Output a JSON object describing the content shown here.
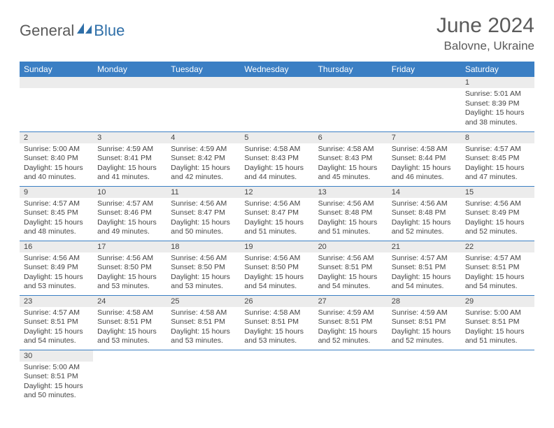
{
  "logo": {
    "general": "General",
    "blue": "Blue"
  },
  "title": "June 2024",
  "location": "Balovne, Ukraine",
  "header_color": "#3b7fc4",
  "daynum_bg": "#ececec",
  "border_color": "#3b7fc4",
  "weekdays": [
    "Sunday",
    "Monday",
    "Tuesday",
    "Wednesday",
    "Thursday",
    "Friday",
    "Saturday"
  ],
  "grid": [
    [
      null,
      null,
      null,
      null,
      null,
      null,
      {
        "n": "1",
        "sr": "Sunrise: 5:01 AM",
        "ss": "Sunset: 8:39 PM",
        "d1": "Daylight: 15 hours",
        "d2": "and 38 minutes."
      }
    ],
    [
      {
        "n": "2",
        "sr": "Sunrise: 5:00 AM",
        "ss": "Sunset: 8:40 PM",
        "d1": "Daylight: 15 hours",
        "d2": "and 40 minutes."
      },
      {
        "n": "3",
        "sr": "Sunrise: 4:59 AM",
        "ss": "Sunset: 8:41 PM",
        "d1": "Daylight: 15 hours",
        "d2": "and 41 minutes."
      },
      {
        "n": "4",
        "sr": "Sunrise: 4:59 AM",
        "ss": "Sunset: 8:42 PM",
        "d1": "Daylight: 15 hours",
        "d2": "and 42 minutes."
      },
      {
        "n": "5",
        "sr": "Sunrise: 4:58 AM",
        "ss": "Sunset: 8:43 PM",
        "d1": "Daylight: 15 hours",
        "d2": "and 44 minutes."
      },
      {
        "n": "6",
        "sr": "Sunrise: 4:58 AM",
        "ss": "Sunset: 8:43 PM",
        "d1": "Daylight: 15 hours",
        "d2": "and 45 minutes."
      },
      {
        "n": "7",
        "sr": "Sunrise: 4:58 AM",
        "ss": "Sunset: 8:44 PM",
        "d1": "Daylight: 15 hours",
        "d2": "and 46 minutes."
      },
      {
        "n": "8",
        "sr": "Sunrise: 4:57 AM",
        "ss": "Sunset: 8:45 PM",
        "d1": "Daylight: 15 hours",
        "d2": "and 47 minutes."
      }
    ],
    [
      {
        "n": "9",
        "sr": "Sunrise: 4:57 AM",
        "ss": "Sunset: 8:45 PM",
        "d1": "Daylight: 15 hours",
        "d2": "and 48 minutes."
      },
      {
        "n": "10",
        "sr": "Sunrise: 4:57 AM",
        "ss": "Sunset: 8:46 PM",
        "d1": "Daylight: 15 hours",
        "d2": "and 49 minutes."
      },
      {
        "n": "11",
        "sr": "Sunrise: 4:56 AM",
        "ss": "Sunset: 8:47 PM",
        "d1": "Daylight: 15 hours",
        "d2": "and 50 minutes."
      },
      {
        "n": "12",
        "sr": "Sunrise: 4:56 AM",
        "ss": "Sunset: 8:47 PM",
        "d1": "Daylight: 15 hours",
        "d2": "and 51 minutes."
      },
      {
        "n": "13",
        "sr": "Sunrise: 4:56 AM",
        "ss": "Sunset: 8:48 PM",
        "d1": "Daylight: 15 hours",
        "d2": "and 51 minutes."
      },
      {
        "n": "14",
        "sr": "Sunrise: 4:56 AM",
        "ss": "Sunset: 8:48 PM",
        "d1": "Daylight: 15 hours",
        "d2": "and 52 minutes."
      },
      {
        "n": "15",
        "sr": "Sunrise: 4:56 AM",
        "ss": "Sunset: 8:49 PM",
        "d1": "Daylight: 15 hours",
        "d2": "and 52 minutes."
      }
    ],
    [
      {
        "n": "16",
        "sr": "Sunrise: 4:56 AM",
        "ss": "Sunset: 8:49 PM",
        "d1": "Daylight: 15 hours",
        "d2": "and 53 minutes."
      },
      {
        "n": "17",
        "sr": "Sunrise: 4:56 AM",
        "ss": "Sunset: 8:50 PM",
        "d1": "Daylight: 15 hours",
        "d2": "and 53 minutes."
      },
      {
        "n": "18",
        "sr": "Sunrise: 4:56 AM",
        "ss": "Sunset: 8:50 PM",
        "d1": "Daylight: 15 hours",
        "d2": "and 53 minutes."
      },
      {
        "n": "19",
        "sr": "Sunrise: 4:56 AM",
        "ss": "Sunset: 8:50 PM",
        "d1": "Daylight: 15 hours",
        "d2": "and 54 minutes."
      },
      {
        "n": "20",
        "sr": "Sunrise: 4:56 AM",
        "ss": "Sunset: 8:51 PM",
        "d1": "Daylight: 15 hours",
        "d2": "and 54 minutes."
      },
      {
        "n": "21",
        "sr": "Sunrise: 4:57 AM",
        "ss": "Sunset: 8:51 PM",
        "d1": "Daylight: 15 hours",
        "d2": "and 54 minutes."
      },
      {
        "n": "22",
        "sr": "Sunrise: 4:57 AM",
        "ss": "Sunset: 8:51 PM",
        "d1": "Daylight: 15 hours",
        "d2": "and 54 minutes."
      }
    ],
    [
      {
        "n": "23",
        "sr": "Sunrise: 4:57 AM",
        "ss": "Sunset: 8:51 PM",
        "d1": "Daylight: 15 hours",
        "d2": "and 54 minutes."
      },
      {
        "n": "24",
        "sr": "Sunrise: 4:58 AM",
        "ss": "Sunset: 8:51 PM",
        "d1": "Daylight: 15 hours",
        "d2": "and 53 minutes."
      },
      {
        "n": "25",
        "sr": "Sunrise: 4:58 AM",
        "ss": "Sunset: 8:51 PM",
        "d1": "Daylight: 15 hours",
        "d2": "and 53 minutes."
      },
      {
        "n": "26",
        "sr": "Sunrise: 4:58 AM",
        "ss": "Sunset: 8:51 PM",
        "d1": "Daylight: 15 hours",
        "d2": "and 53 minutes."
      },
      {
        "n": "27",
        "sr": "Sunrise: 4:59 AM",
        "ss": "Sunset: 8:51 PM",
        "d1": "Daylight: 15 hours",
        "d2": "and 52 minutes."
      },
      {
        "n": "28",
        "sr": "Sunrise: 4:59 AM",
        "ss": "Sunset: 8:51 PM",
        "d1": "Daylight: 15 hours",
        "d2": "and 52 minutes."
      },
      {
        "n": "29",
        "sr": "Sunrise: 5:00 AM",
        "ss": "Sunset: 8:51 PM",
        "d1": "Daylight: 15 hours",
        "d2": "and 51 minutes."
      }
    ],
    [
      {
        "n": "30",
        "sr": "Sunrise: 5:00 AM",
        "ss": "Sunset: 8:51 PM",
        "d1": "Daylight: 15 hours",
        "d2": "and 50 minutes."
      },
      null,
      null,
      null,
      null,
      null,
      null
    ]
  ]
}
